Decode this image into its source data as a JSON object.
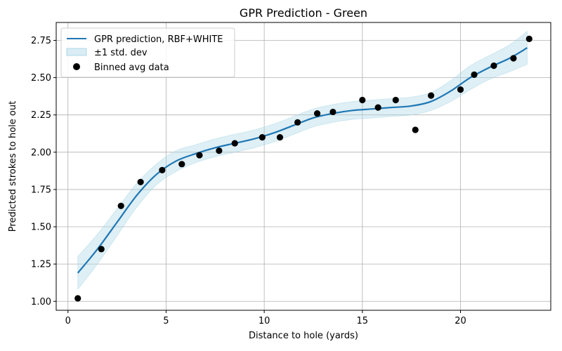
{
  "chart_data": {
    "type": "line",
    "title": "GPR Prediction - Green",
    "xlabel": "Distance to hole (yards)",
    "ylabel": "Predicted strokes to hole out",
    "xlim": [
      -0.6,
      24.6
    ],
    "ylim": [
      0.94,
      2.87
    ],
    "xticks": [
      0,
      5,
      10,
      15,
      20
    ],
    "yticks": [
      1.0,
      1.25,
      1.5,
      1.75,
      2.0,
      2.25,
      2.5,
      2.75
    ],
    "grid": true,
    "legend_position": "top-left",
    "colors": {
      "line": "#1f77b4",
      "band": "#add8e6",
      "points": "#000000"
    },
    "series": [
      {
        "name": "GPR prediction, RBF+WHITE",
        "kind": "line",
        "x": [
          0.5,
          1.5,
          2.5,
          3.5,
          4.5,
          5.5,
          6.5,
          7.5,
          8.5,
          9.5,
          10.5,
          11.5,
          12.5,
          13.5,
          14.5,
          15.5,
          16.5,
          17.5,
          18.5,
          19.5,
          20.5,
          21.5,
          22.5,
          23.4
        ],
        "y": [
          1.19,
          1.35,
          1.53,
          1.71,
          1.85,
          1.94,
          1.99,
          2.03,
          2.06,
          2.09,
          2.13,
          2.18,
          2.23,
          2.26,
          2.28,
          2.29,
          2.3,
          2.31,
          2.34,
          2.41,
          2.5,
          2.57,
          2.63,
          2.7
        ]
      },
      {
        "name": "±1 std. dev",
        "kind": "band",
        "x": [
          0.5,
          1.5,
          2.5,
          3.5,
          4.5,
          5.5,
          6.5,
          7.5,
          8.5,
          9.5,
          10.5,
          11.5,
          12.5,
          13.5,
          14.5,
          15.5,
          16.5,
          17.5,
          18.5,
          19.5,
          20.5,
          21.5,
          22.5,
          23.4
        ],
        "lower": [
          1.08,
          1.25,
          1.44,
          1.63,
          1.78,
          1.87,
          1.93,
          1.97,
          2.0,
          2.03,
          2.07,
          2.12,
          2.17,
          2.2,
          2.22,
          2.23,
          2.24,
          2.25,
          2.28,
          2.34,
          2.42,
          2.49,
          2.54,
          2.59
        ],
        "upper": [
          1.3,
          1.45,
          1.62,
          1.79,
          1.92,
          2.01,
          2.05,
          2.09,
          2.12,
          2.15,
          2.19,
          2.24,
          2.29,
          2.32,
          2.34,
          2.35,
          2.36,
          2.37,
          2.4,
          2.48,
          2.58,
          2.65,
          2.72,
          2.81
        ]
      },
      {
        "name": "Binned avg data",
        "kind": "scatter",
        "x": [
          0.5,
          1.7,
          2.7,
          3.7,
          4.8,
          5.8,
          6.7,
          7.7,
          8.5,
          9.9,
          10.8,
          11.7,
          12.7,
          13.5,
          15.0,
          15.8,
          16.7,
          17.7,
          18.5,
          20.0,
          20.7,
          21.7,
          22.7,
          23.5
        ],
        "y": [
          1.02,
          1.35,
          1.64,
          1.8,
          1.88,
          1.92,
          1.98,
          2.01,
          2.06,
          2.1,
          2.1,
          2.2,
          2.26,
          2.27,
          2.35,
          2.3,
          2.35,
          2.15,
          2.38,
          2.42,
          2.52,
          2.58,
          2.63,
          2.76
        ]
      }
    ]
  }
}
